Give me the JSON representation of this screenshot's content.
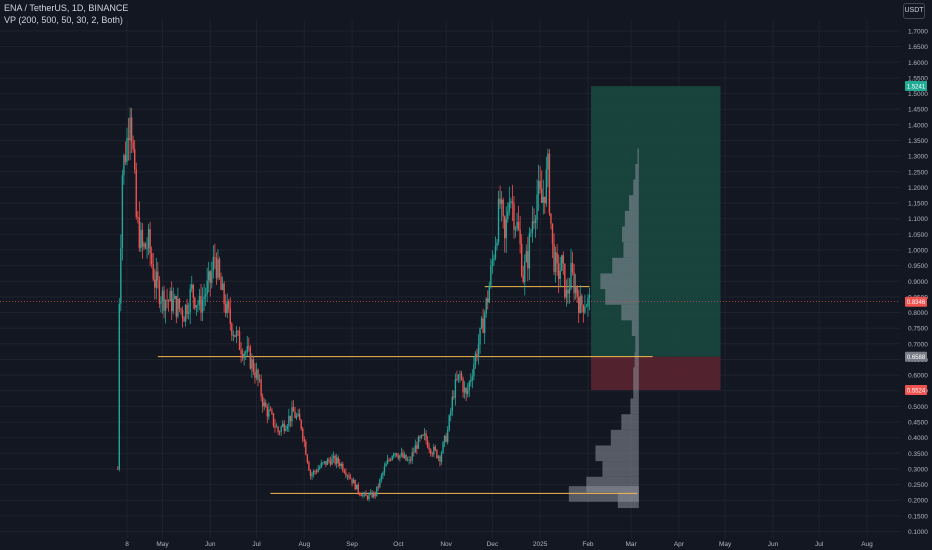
{
  "header": {
    "symbol_line": "ENA / TetherUS, 1D, BINANCE",
    "indicator_line": "VP (200, 500, 50, 30, 2, Both)",
    "currency_button": "USDT"
  },
  "colors": {
    "background": "#131722",
    "grid": "#1e222d",
    "up": "#26a69a",
    "down": "#ef5350",
    "level_line": "#f5b94c",
    "target_zone": "#1a4a41",
    "stop_zone": "#5a2430",
    "volume_profile": "#8d919d",
    "price_label": "#ef5350",
    "target_label": "#22ab94",
    "entry_label": "#787b86"
  },
  "chart_data": {
    "type": "candlestick",
    "y_axis": {
      "min": 0.1,
      "max": 1.7,
      "ticks": [
        "0.1000",
        "0.1500",
        "0.2000",
        "0.2500",
        "0.3000",
        "0.3500",
        "0.4000",
        "0.4500",
        "0.5000",
        "0.5500",
        "0.6000",
        "0.6500",
        "0.7000",
        "0.7500",
        "0.8000",
        "0.8500",
        "0.9000",
        "0.9500",
        "1.0000",
        "1.0500",
        "1.1000",
        "1.1500",
        "1.2000",
        "1.2500",
        "1.3000",
        "1.3500",
        "1.4000",
        "1.4500",
        "1.5000",
        "1.5500",
        "1.6000",
        "1.6500",
        "1.7000"
      ]
    },
    "x_axis": {
      "ticks": [
        {
          "label": "8",
          "date": "2024-04-08"
        },
        {
          "label": "May",
          "date": "2024-05-01"
        },
        {
          "label": "Jun",
          "date": "2024-06-01"
        },
        {
          "label": "Jul",
          "date": "2024-07-01"
        },
        {
          "label": "Aug",
          "date": "2024-08-01"
        },
        {
          "label": "Sep",
          "date": "2024-09-01"
        },
        {
          "label": "Oct",
          "date": "2024-10-01"
        },
        {
          "label": "Nov",
          "date": "2024-11-01"
        },
        {
          "label": "Dec",
          "date": "2024-12-01"
        },
        {
          "label": "2025",
          "date": "2025-01-01"
        },
        {
          "label": "Feb",
          "date": "2025-02-01"
        },
        {
          "label": "Mar",
          "date": "2025-03-01"
        },
        {
          "label": "Apr",
          "date": "2025-04-01"
        },
        {
          "label": "May",
          "date": "2025-05-01"
        },
        {
          "label": "Jun",
          "date": "2025-06-01"
        },
        {
          "label": "Jul",
          "date": "2025-07-01"
        },
        {
          "label": "Aug",
          "date": "2025-08-01"
        }
      ]
    },
    "price_path": [
      {
        "date": "2024-04-02",
        "close": 0.3
      },
      {
        "date": "2024-04-03",
        "close": 0.85
      },
      {
        "date": "2024-04-05",
        "close": 1.25
      },
      {
        "date": "2024-04-08",
        "close": 1.35
      },
      {
        "date": "2024-04-10",
        "close": 1.48
      },
      {
        "date": "2024-04-12",
        "close": 1.3
      },
      {
        "date": "2024-04-14",
        "close": 1.1
      },
      {
        "date": "2024-04-18",
        "close": 1.0
      },
      {
        "date": "2024-04-22",
        "close": 1.02
      },
      {
        "date": "2024-04-26",
        "close": 0.9
      },
      {
        "date": "2024-05-01",
        "close": 0.85
      },
      {
        "date": "2024-05-08",
        "close": 0.83
      },
      {
        "date": "2024-05-15",
        "close": 0.8
      },
      {
        "date": "2024-05-20",
        "close": 0.87
      },
      {
        "date": "2024-05-25",
        "close": 0.82
      },
      {
        "date": "2024-06-01",
        "close": 0.9
      },
      {
        "date": "2024-06-04",
        "close": 0.98
      },
      {
        "date": "2024-06-08",
        "close": 0.87
      },
      {
        "date": "2024-06-14",
        "close": 0.77
      },
      {
        "date": "2024-06-20",
        "close": 0.7
      },
      {
        "date": "2024-06-26",
        "close": 0.66
      },
      {
        "date": "2024-07-01",
        "close": 0.6
      },
      {
        "date": "2024-07-06",
        "close": 0.5
      },
      {
        "date": "2024-07-10",
        "close": 0.47
      },
      {
        "date": "2024-07-15",
        "close": 0.42
      },
      {
        "date": "2024-07-20",
        "close": 0.45
      },
      {
        "date": "2024-07-25",
        "close": 0.48
      },
      {
        "date": "2024-07-30",
        "close": 0.44
      },
      {
        "date": "2024-08-05",
        "close": 0.28
      },
      {
        "date": "2024-08-12",
        "close": 0.31
      },
      {
        "date": "2024-08-18",
        "close": 0.33
      },
      {
        "date": "2024-08-24",
        "close": 0.32
      },
      {
        "date": "2024-08-30",
        "close": 0.28
      },
      {
        "date": "2024-09-05",
        "close": 0.23
      },
      {
        "date": "2024-09-10",
        "close": 0.21
      },
      {
        "date": "2024-09-16",
        "close": 0.22
      },
      {
        "date": "2024-09-22",
        "close": 0.3
      },
      {
        "date": "2024-09-28",
        "close": 0.36
      },
      {
        "date": "2024-10-03",
        "close": 0.34
      },
      {
        "date": "2024-10-08",
        "close": 0.32
      },
      {
        "date": "2024-10-13",
        "close": 0.38
      },
      {
        "date": "2024-10-18",
        "close": 0.4
      },
      {
        "date": "2024-10-23",
        "close": 0.36
      },
      {
        "date": "2024-10-28",
        "close": 0.34
      },
      {
        "date": "2024-11-02",
        "close": 0.42
      },
      {
        "date": "2024-11-06",
        "close": 0.55
      },
      {
        "date": "2024-11-10",
        "close": 0.6
      },
      {
        "date": "2024-11-14",
        "close": 0.53
      },
      {
        "date": "2024-11-18",
        "close": 0.62
      },
      {
        "date": "2024-11-23",
        "close": 0.72
      },
      {
        "date": "2024-11-28",
        "close": 0.85
      },
      {
        "date": "2024-12-02",
        "close": 1.0
      },
      {
        "date": "2024-12-06",
        "close": 1.15
      },
      {
        "date": "2024-12-09",
        "close": 1.02
      },
      {
        "date": "2024-12-12",
        "close": 1.2
      },
      {
        "date": "2024-12-15",
        "close": 1.12
      },
      {
        "date": "2024-12-18",
        "close": 1.05
      },
      {
        "date": "2024-12-21",
        "close": 0.92
      },
      {
        "date": "2024-12-24",
        "close": 0.98
      },
      {
        "date": "2024-12-27",
        "close": 1.1
      },
      {
        "date": "2024-12-30",
        "close": 1.18
      },
      {
        "date": "2025-01-02",
        "close": 1.15
      },
      {
        "date": "2025-01-06",
        "close": 1.25
      },
      {
        "date": "2025-01-09",
        "close": 1.0
      },
      {
        "date": "2025-01-12",
        "close": 0.92
      },
      {
        "date": "2025-01-15",
        "close": 0.95
      },
      {
        "date": "2025-01-18",
        "close": 0.85
      },
      {
        "date": "2025-01-21",
        "close": 0.92
      },
      {
        "date": "2025-01-24",
        "close": 0.88
      },
      {
        "date": "2025-01-27",
        "close": 0.82
      },
      {
        "date": "2025-01-30",
        "close": 0.84
      },
      {
        "date": "2025-02-02",
        "close": 0.83
      }
    ],
    "horizontal_lines": [
      {
        "price": 0.659,
        "from": "2024-04-28",
        "to": "2025-03-15"
      },
      {
        "price": 0.883,
        "from": "2024-11-26",
        "to": "2025-02-02"
      },
      {
        "price": 0.222,
        "from": "2024-07-10",
        "to": "2025-03-05"
      }
    ],
    "position": {
      "entry": 0.6588,
      "target": 1.5241,
      "stop": 0.5524,
      "from": "2025-02-03",
      "to": "2025-04-28"
    },
    "price_labels": [
      {
        "price": 1.5241,
        "text": "1.5241",
        "kind": "target"
      },
      {
        "price": 0.8346,
        "text": "0.8346",
        "kind": "last"
      },
      {
        "price": 0.6588,
        "text": "0.6588",
        "kind": "entry"
      },
      {
        "price": 0.5524,
        "text": "0.5524",
        "kind": "stop"
      }
    ],
    "volume_profile": [
      {
        "price": 1.3,
        "size": 0.02
      },
      {
        "price": 1.25,
        "size": 0.05
      },
      {
        "price": 1.2,
        "size": 0.08
      },
      {
        "price": 1.15,
        "size": 0.14
      },
      {
        "price": 1.1,
        "size": 0.2
      },
      {
        "price": 1.05,
        "size": 0.24
      },
      {
        "price": 1.0,
        "size": 0.22
      },
      {
        "price": 0.95,
        "size": 0.38
      },
      {
        "price": 0.9,
        "size": 0.55
      },
      {
        "price": 0.85,
        "size": 0.48
      },
      {
        "price": 0.8,
        "size": 0.25
      },
      {
        "price": 0.75,
        "size": 0.1
      },
      {
        "price": 0.7,
        "size": 0.05
      },
      {
        "price": 0.65,
        "size": 0.06
      },
      {
        "price": 0.6,
        "size": 0.08
      },
      {
        "price": 0.55,
        "size": 0.08
      },
      {
        "price": 0.5,
        "size": 0.12
      },
      {
        "price": 0.45,
        "size": 0.25
      },
      {
        "price": 0.4,
        "size": 0.4
      },
      {
        "price": 0.35,
        "size": 0.62
      },
      {
        "price": 0.3,
        "size": 0.52
      },
      {
        "price": 0.25,
        "size": 0.75
      },
      {
        "price": 0.22,
        "size": 1.0
      },
      {
        "price": 0.2,
        "size": 0.3
      }
    ]
  }
}
